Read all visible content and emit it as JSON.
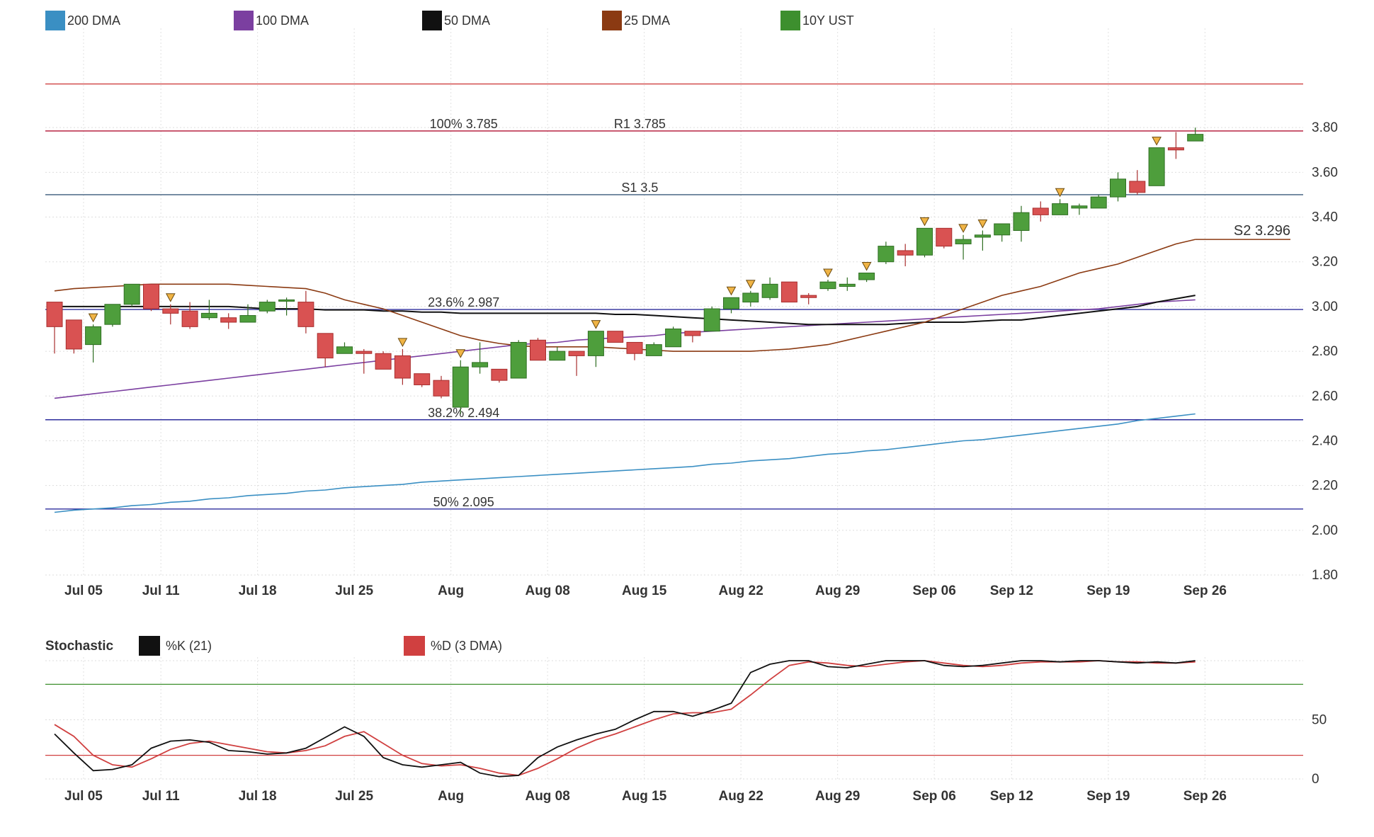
{
  "chart_data": [
    {
      "type": "candlestick",
      "legend": [
        {
          "label": "200 DMA",
          "color": "#3a8fc3"
        },
        {
          "label": "100 DMA",
          "color": "#7b3fa0"
        },
        {
          "label": "50 DMA",
          "color": "#111111"
        },
        {
          "label": "25 DMA",
          "color": "#8b3a12"
        },
        {
          "label": "10Y UST",
          "color": "#3d8f2e"
        }
      ],
      "ylim": [
        1.8,
        4.0
      ],
      "yticks": [
        "1.80",
        "2.00",
        "2.20",
        "2.40",
        "2.60",
        "2.80",
        "3.00",
        "3.20",
        "3.40",
        "3.60",
        "3.80"
      ],
      "xticks": [
        {
          "label": "Jul 05",
          "i": 1.5
        },
        {
          "label": "Jul 11",
          "i": 5.5
        },
        {
          "label": "Jul 18",
          "i": 10.5
        },
        {
          "label": "Jul 25",
          "i": 15.5
        },
        {
          "label": "Aug",
          "i": 20.5
        },
        {
          "label": "Aug 08",
          "i": 25.5
        },
        {
          "label": "Aug 15",
          "i": 30.5
        },
        {
          "label": "Aug 22",
          "i": 35.5
        },
        {
          "label": "Aug 29",
          "i": 40.5
        },
        {
          "label": "Sep 06",
          "i": 45.5
        },
        {
          "label": "Sep 12",
          "i": 49.5
        },
        {
          "label": "Sep 19",
          "i": 54.5
        },
        {
          "label": "Sep 26",
          "i": 59.5
        }
      ],
      "levels": [
        {
          "label": "",
          "value": 3.995,
          "color": "#d04040"
        },
        {
          "label": "100% 3.785",
          "value": 3.785,
          "color": "#b01030",
          "pos": 0.22
        },
        {
          "label": "R1 3.785",
          "value": 3.785,
          "color": "#b01030",
          "pos": 0.36,
          "hideLine": true
        },
        {
          "label": "S1 3.5",
          "value": 3.5,
          "color": "#3a5a7a",
          "pos": 0.36
        },
        {
          "label": "23.6% 2.987",
          "value": 2.987,
          "color": "#2d2d9c",
          "pos": 0.22
        },
        {
          "label": "38.2% 2.494",
          "value": 2.494,
          "color": "#2d2d9c",
          "pos": 0.22
        },
        {
          "label": "50% 2.095",
          "value": 2.095,
          "color": "#2d2d9c",
          "pos": 0.22
        }
      ],
      "s2_label": "S2 3.296",
      "candles": [
        {
          "o": 3.02,
          "h": 3.02,
          "l": 2.79,
          "c": 2.91
        },
        {
          "o": 2.94,
          "h": 2.94,
          "l": 2.79,
          "c": 2.81
        },
        {
          "o": 2.83,
          "h": 2.92,
          "l": 2.75,
          "c": 2.91
        },
        {
          "o": 2.92,
          "h": 3.01,
          "l": 2.91,
          "c": 3.01
        },
        {
          "o": 3.01,
          "h": 3.1,
          "l": 3.0,
          "c": 3.1
        },
        {
          "o": 3.1,
          "h": 3.1,
          "l": 2.98,
          "c": 2.99
        },
        {
          "o": 2.99,
          "h": 3.01,
          "l": 2.92,
          "c": 2.97
        },
        {
          "o": 2.98,
          "h": 3.02,
          "l": 2.9,
          "c": 2.91
        },
        {
          "o": 2.95,
          "h": 3.03,
          "l": 2.94,
          "c": 2.97
        },
        {
          "o": 2.95,
          "h": 2.97,
          "l": 2.9,
          "c": 2.93
        },
        {
          "o": 2.93,
          "h": 3.01,
          "l": 2.93,
          "c": 2.96
        },
        {
          "o": 2.98,
          "h": 3.03,
          "l": 2.97,
          "c": 3.02
        },
        {
          "o": 3.03,
          "h": 3.04,
          "l": 2.96,
          "c": 3.03
        },
        {
          "o": 3.02,
          "h": 3.07,
          "l": 2.88,
          "c": 2.91
        },
        {
          "o": 2.88,
          "h": 2.88,
          "l": 2.73,
          "c": 2.77
        },
        {
          "o": 2.79,
          "h": 2.84,
          "l": 2.79,
          "c": 2.82
        },
        {
          "o": 2.8,
          "h": 2.81,
          "l": 2.7,
          "c": 2.79
        },
        {
          "o": 2.79,
          "h": 2.8,
          "l": 2.72,
          "c": 2.72
        },
        {
          "o": 2.78,
          "h": 2.81,
          "l": 2.65,
          "c": 2.68
        },
        {
          "o": 2.7,
          "h": 2.7,
          "l": 2.64,
          "c": 2.65
        },
        {
          "o": 2.67,
          "h": 2.69,
          "l": 2.59,
          "c": 2.6
        },
        {
          "o": 2.55,
          "h": 2.76,
          "l": 2.52,
          "c": 2.73
        },
        {
          "o": 2.73,
          "h": 2.84,
          "l": 2.7,
          "c": 2.75
        },
        {
          "o": 2.72,
          "h": 2.72,
          "l": 2.66,
          "c": 2.67
        },
        {
          "o": 2.68,
          "h": 2.85,
          "l": 2.68,
          "c": 2.84
        },
        {
          "o": 2.85,
          "h": 2.86,
          "l": 2.76,
          "c": 2.76
        },
        {
          "o": 2.76,
          "h": 2.82,
          "l": 2.76,
          "c": 2.8
        },
        {
          "o": 2.8,
          "h": 2.8,
          "l": 2.69,
          "c": 2.78
        },
        {
          "o": 2.78,
          "h": 2.89,
          "l": 2.73,
          "c": 2.89
        },
        {
          "o": 2.89,
          "h": 2.89,
          "l": 2.84,
          "c": 2.84
        },
        {
          "o": 2.84,
          "h": 2.84,
          "l": 2.76,
          "c": 2.79
        },
        {
          "o": 2.78,
          "h": 2.84,
          "l": 2.78,
          "c": 2.83
        },
        {
          "o": 2.82,
          "h": 2.91,
          "l": 2.82,
          "c": 2.9
        },
        {
          "o": 2.89,
          "h": 2.89,
          "l": 2.84,
          "c": 2.87
        },
        {
          "o": 2.89,
          "h": 3.0,
          "l": 2.89,
          "c": 2.99
        },
        {
          "o": 2.99,
          "h": 3.04,
          "l": 2.97,
          "c": 3.04
        },
        {
          "o": 3.02,
          "h": 3.07,
          "l": 3.0,
          "c": 3.06
        },
        {
          "o": 3.04,
          "h": 3.13,
          "l": 3.03,
          "c": 3.1
        },
        {
          "o": 3.11,
          "h": 3.11,
          "l": 3.02,
          "c": 3.02
        },
        {
          "o": 3.05,
          "h": 3.06,
          "l": 3.01,
          "c": 3.04
        },
        {
          "o": 3.08,
          "h": 3.12,
          "l": 3.07,
          "c": 3.11
        },
        {
          "o": 3.09,
          "h": 3.13,
          "l": 3.07,
          "c": 3.1
        },
        {
          "o": 3.12,
          "h": 3.15,
          "l": 3.11,
          "c": 3.15
        },
        {
          "o": 3.2,
          "h": 3.29,
          "l": 3.19,
          "c": 3.27
        },
        {
          "o": 3.25,
          "h": 3.28,
          "l": 3.18,
          "c": 3.23
        },
        {
          "o": 3.23,
          "h": 3.35,
          "l": 3.22,
          "c": 3.35
        },
        {
          "o": 3.35,
          "h": 3.35,
          "l": 3.26,
          "c": 3.27
        },
        {
          "o": 3.28,
          "h": 3.32,
          "l": 3.21,
          "c": 3.3
        },
        {
          "o": 3.31,
          "h": 3.34,
          "l": 3.25,
          "c": 3.32
        },
        {
          "o": 3.32,
          "h": 3.37,
          "l": 3.29,
          "c": 3.37
        },
        {
          "o": 3.34,
          "h": 3.45,
          "l": 3.29,
          "c": 3.42
        },
        {
          "o": 3.44,
          "h": 3.47,
          "l": 3.38,
          "c": 3.41
        },
        {
          "o": 3.41,
          "h": 3.48,
          "l": 3.41,
          "c": 3.46
        },
        {
          "o": 3.44,
          "h": 3.46,
          "l": 3.41,
          "c": 3.45
        },
        {
          "o": 3.44,
          "h": 3.5,
          "l": 3.44,
          "c": 3.49
        },
        {
          "o": 3.49,
          "h": 3.6,
          "l": 3.47,
          "c": 3.57
        },
        {
          "o": 3.56,
          "h": 3.61,
          "l": 3.5,
          "c": 3.51
        },
        {
          "o": 3.54,
          "h": 3.71,
          "l": 3.54,
          "c": 3.71
        },
        {
          "o": 3.71,
          "h": 3.78,
          "l": 3.66,
          "c": 3.7
        },
        {
          "o": 3.74,
          "h": 3.8,
          "l": 3.74,
          "c": 3.77
        }
      ],
      "markers_i": [
        2,
        6,
        18,
        21,
        28,
        35,
        36,
        40,
        42,
        45,
        47,
        48,
        52,
        57
      ],
      "ma_200": [
        2.08,
        2.09,
        2.095,
        2.1,
        2.11,
        2.115,
        2.125,
        2.13,
        2.14,
        2.145,
        2.155,
        2.16,
        2.165,
        2.175,
        2.18,
        2.19,
        2.195,
        2.2,
        2.205,
        2.215,
        2.22,
        2.225,
        2.23,
        2.235,
        2.24,
        2.245,
        2.25,
        2.255,
        2.26,
        2.265,
        2.27,
        2.275,
        2.28,
        2.285,
        2.295,
        2.3,
        2.31,
        2.315,
        2.32,
        2.33,
        2.34,
        2.345,
        2.355,
        2.36,
        2.37,
        2.38,
        2.39,
        2.4,
        2.405,
        2.415,
        2.425,
        2.435,
        2.445,
        2.455,
        2.465,
        2.475,
        2.49,
        2.5,
        2.51,
        2.52
      ],
      "ma_100": [
        2.59,
        2.6,
        2.61,
        2.62,
        2.63,
        2.64,
        2.65,
        2.66,
        2.67,
        2.68,
        2.69,
        2.7,
        2.71,
        2.72,
        2.73,
        2.74,
        2.75,
        2.76,
        2.77,
        2.78,
        2.79,
        2.8,
        2.81,
        2.82,
        2.83,
        2.835,
        2.84,
        2.85,
        2.855,
        2.86,
        2.865,
        2.87,
        2.88,
        2.885,
        2.89,
        2.895,
        2.9,
        2.905,
        2.91,
        2.915,
        2.92,
        2.925,
        2.93,
        2.935,
        2.94,
        2.945,
        2.95,
        2.955,
        2.96,
        2.965,
        2.97,
        2.975,
        2.98,
        2.985,
        2.99,
        3.0,
        3.01,
        3.02,
        3.025,
        3.03
      ],
      "ma_50": [
        3.0,
        3.0,
        3.0,
        3.0,
        3.0,
        3.0,
        3.0,
        3.0,
        3.0,
        3.0,
        2.995,
        2.99,
        2.99,
        2.99,
        2.985,
        2.985,
        2.985,
        2.98,
        2.98,
        2.975,
        2.975,
        2.97,
        2.97,
        2.97,
        2.97,
        2.97,
        2.97,
        2.97,
        2.97,
        2.965,
        2.965,
        2.96,
        2.955,
        2.95,
        2.945,
        2.94,
        2.935,
        2.93,
        2.925,
        2.92,
        2.92,
        2.92,
        2.92,
        2.92,
        2.925,
        2.93,
        2.93,
        2.93,
        2.935,
        2.94,
        2.94,
        2.95,
        2.96,
        2.97,
        2.98,
        2.99,
        3.0,
        3.02,
        3.035,
        3.05
      ],
      "ma_25": [
        3.07,
        3.08,
        3.085,
        3.09,
        3.095,
        3.1,
        3.1,
        3.1,
        3.1,
        3.1,
        3.095,
        3.09,
        3.085,
        3.08,
        3.06,
        3.03,
        3.01,
        2.99,
        2.96,
        2.93,
        2.9,
        2.87,
        2.85,
        2.835,
        2.825,
        2.82,
        2.82,
        2.82,
        2.82,
        2.815,
        2.81,
        2.805,
        2.8,
        2.8,
        2.8,
        2.8,
        2.8,
        2.805,
        2.81,
        2.82,
        2.83,
        2.85,
        2.87,
        2.89,
        2.91,
        2.93,
        2.96,
        2.99,
        3.02,
        3.05,
        3.07,
        3.09,
        3.12,
        3.15,
        3.17,
        3.19,
        3.22,
        3.25,
        3.28,
        3.3
      ]
    },
    {
      "type": "line",
      "title": "Stochastic",
      "legend": [
        {
          "label": "%K (21)",
          "color": "#111111"
        },
        {
          "label": "%D (3 DMA)",
          "color": "#d04040"
        }
      ],
      "ylim": [
        0,
        100
      ],
      "yticks": [
        "0",
        "50"
      ],
      "levels": [
        {
          "value": 80,
          "color": "#3d8f2e"
        },
        {
          "value": 20,
          "color": "#d04040"
        }
      ],
      "series": [
        {
          "name": "%K (21)",
          "values": [
            38,
            22,
            7,
            8,
            12,
            26,
            32,
            33,
            31,
            24,
            23,
            21,
            22,
            26,
            35,
            44,
            36,
            18,
            12,
            10,
            12,
            14,
            5,
            2,
            3,
            18,
            27,
            33,
            38,
            42,
            50,
            57,
            57,
            53,
            58,
            64,
            90,
            97,
            100,
            100,
            95,
            94,
            97,
            100,
            100,
            100,
            96,
            95,
            96,
            98,
            100,
            100,
            99,
            100,
            100,
            99,
            98,
            99,
            98,
            100
          ]
        },
        {
          "name": "%D (3 DMA)",
          "values": [
            46,
            36,
            20,
            12,
            10,
            17,
            25,
            30,
            32,
            29,
            26,
            23,
            22,
            24,
            28,
            36,
            40,
            30,
            20,
            13,
            11,
            12,
            9,
            5,
            3,
            9,
            17,
            26,
            33,
            38,
            44,
            50,
            55,
            56,
            56,
            59,
            71,
            84,
            96,
            99,
            98,
            96,
            95,
            97,
            99,
            100,
            98,
            96,
            95,
            96,
            98,
            99,
            99,
            99,
            100,
            99,
            99,
            98,
            98,
            99
          ]
        }
      ]
    }
  ]
}
